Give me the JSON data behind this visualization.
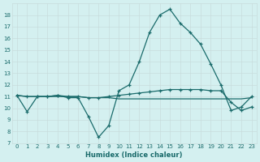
{
  "xlabel": "Humidex (Indice chaleur)",
  "x": [
    0,
    1,
    2,
    3,
    4,
    5,
    6,
    7,
    8,
    9,
    10,
    11,
    12,
    13,
    14,
    15,
    16,
    17,
    18,
    19,
    20,
    21,
    22,
    23
  ],
  "y_peak": [
    11.1,
    9.7,
    11.0,
    11.0,
    11.1,
    10.9,
    10.9,
    9.3,
    7.5,
    8.5,
    11.5,
    12.0,
    14.0,
    16.5,
    18.0,
    18.5,
    17.3,
    16.5,
    15.5,
    13.8,
    12.0,
    9.8,
    10.1,
    11.0
  ],
  "y_upper": [
    11.1,
    11.0,
    11.0,
    11.0,
    11.1,
    11.0,
    11.0,
    10.9,
    10.9,
    11.0,
    11.1,
    11.2,
    11.3,
    11.4,
    11.5,
    11.6,
    11.6,
    11.6,
    11.6,
    11.5,
    11.5,
    10.5,
    9.8,
    10.1
  ],
  "y_lower": [
    11.1,
    11.0,
    11.0,
    11.0,
    11.0,
    11.0,
    11.0,
    10.9,
    10.9,
    10.9,
    10.8,
    10.8,
    10.8,
    10.8,
    10.8,
    10.8,
    10.8,
    10.8,
    10.8,
    10.8,
    10.8,
    10.8,
    10.8,
    10.9
  ],
  "bg_color": "#d4f0f0",
  "grid_color_major": "#c8dcdc",
  "grid_color_minor": "#dceaea",
  "line_color": "#1a6b6b",
  "ylim": [
    7,
    19
  ],
  "xlim": [
    -0.5,
    23.5
  ],
  "yticks": [
    7,
    8,
    9,
    10,
    11,
    12,
    13,
    14,
    15,
    16,
    17,
    18
  ],
  "xtick_labels": [
    "0",
    "1",
    "2",
    "3",
    "4",
    "5",
    "6",
    "7",
    "8",
    "9",
    "10",
    "11",
    "12",
    "13",
    "14",
    "15",
    "16",
    "17",
    "18",
    "19",
    "20",
    "21",
    "22",
    "23"
  ]
}
